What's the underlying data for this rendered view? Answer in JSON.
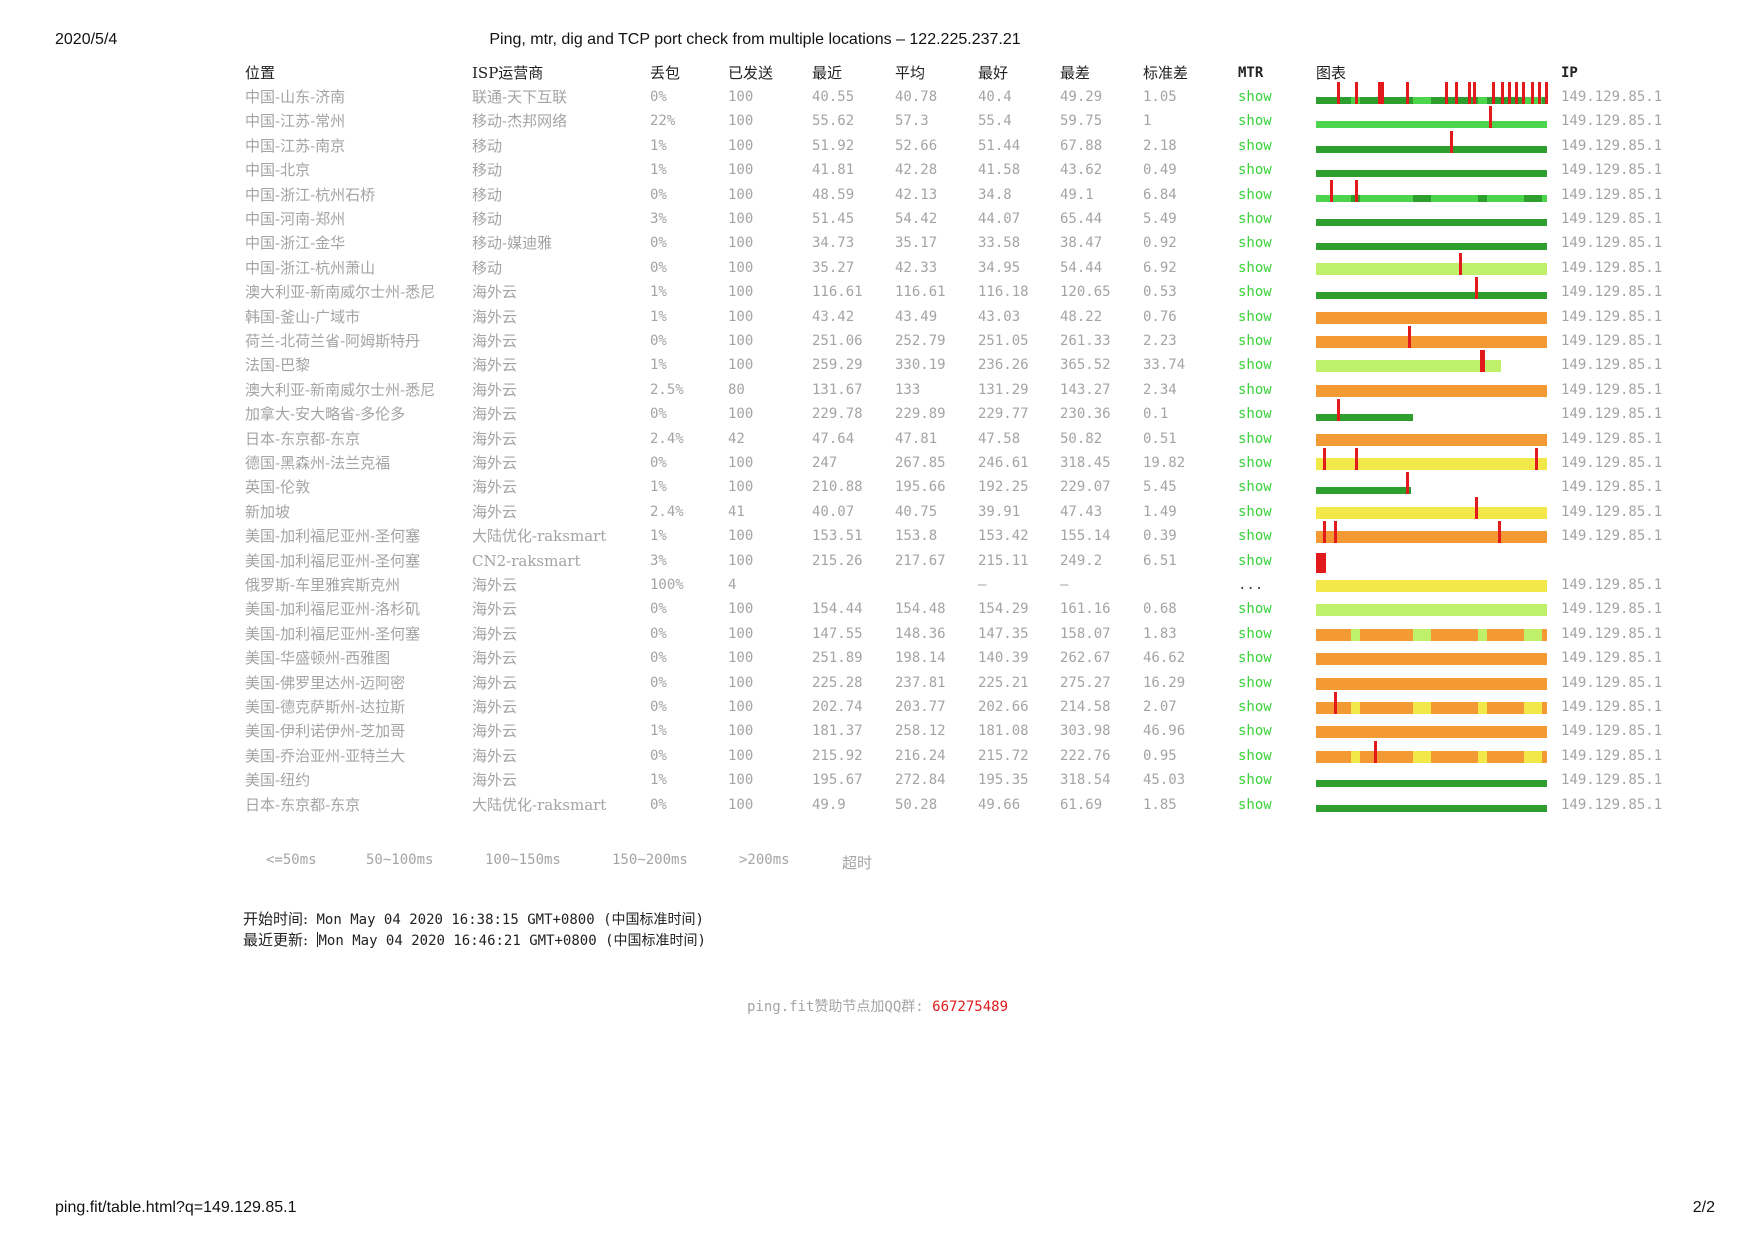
{
  "print": {
    "date": "2020/5/4",
    "title": "Ping, mtr, dig and TCP port check from multiple locations – 122.225.237.21",
    "url": "ping.fit/table.html?q=149.129.85.1",
    "page": "2/2"
  },
  "colors": {
    "le50": "#2e9e2e",
    "r50_100": "#4cd44c",
    "r100_150": "#bff06a",
    "r150_200": "#f3e84a",
    "gt200": "#f39a34",
    "timeout": "#e31a1c",
    "mtr_link": "#3ad23a"
  },
  "headers": {
    "location": "位置",
    "isp": "ISP运营商",
    "loss": "丢包",
    "sent": "已发送",
    "last": "最近",
    "avg": "平均",
    "best": "最好",
    "worst": "最差",
    "stdev": "标准差",
    "mtr": "MTR",
    "chart": "图表",
    "ip": "IP"
  },
  "rows": [
    {
      "location": "中国-山东-济南",
      "isp": "联通-天下互联",
      "loss": "0%",
      "sent": "100",
      "last": "40.55",
      "avg": "40.78",
      "best": "40.4",
      "worst": "49.29",
      "stdev": "1.05",
      "mtr": "show",
      "ip": "149.129.85.1",
      "chart": {
        "color": "le50",
        "fill": 1.0,
        "spikes": [
          0.09,
          0.17,
          0.27,
          0.28,
          0.39,
          0.56,
          0.6,
          0.66,
          0.68,
          0.76,
          0.8,
          0.83,
          0.86,
          0.89,
          0.93,
          0.96,
          0.99
        ],
        "alt": "r50_100"
      }
    },
    {
      "location": "中国-江苏-常州",
      "isp": "移动-杰邦网络",
      "loss": "22%",
      "sent": "100",
      "last": "55.62",
      "avg": "57.3",
      "best": "55.4",
      "worst": "59.75",
      "stdev": "1",
      "mtr": "show",
      "ip": "149.129.85.1",
      "chart": {
        "color": "r50_100",
        "fill": 1.0,
        "spikes": [
          0.75
        ]
      }
    },
    {
      "location": "中国-江苏-南京",
      "isp": "移动",
      "loss": "1%",
      "sent": "100",
      "last": "51.92",
      "avg": "52.66",
      "best": "51.44",
      "worst": "67.88",
      "stdev": "2.18",
      "mtr": "show",
      "ip": "149.129.85.1",
      "chart": {
        "color": "le50",
        "fill": 1.0,
        "spikes": [
          0.58
        ]
      }
    },
    {
      "location": "中国-北京",
      "isp": "移动",
      "loss": "1%",
      "sent": "100",
      "last": "41.81",
      "avg": "42.28",
      "best": "41.58",
      "worst": "43.62",
      "stdev": "0.49",
      "mtr": "show",
      "ip": "149.129.85.1",
      "chart": {
        "color": "le50",
        "fill": 1.0,
        "spikes": []
      }
    },
    {
      "location": "中国-浙江-杭州石桥",
      "isp": "移动",
      "loss": "0%",
      "sent": "100",
      "last": "48.59",
      "avg": "42.13",
      "best": "34.8",
      "worst": "49.1",
      "stdev": "6.84",
      "mtr": "show",
      "ip": "149.129.85.1",
      "chart": {
        "color": "r50_100",
        "fill": 1.0,
        "spikes": [
          0.06,
          0.17
        ],
        "alt": "le50"
      }
    },
    {
      "location": "中国-河南-郑州",
      "isp": "移动",
      "loss": "3%",
      "sent": "100",
      "last": "51.45",
      "avg": "54.42",
      "best": "44.07",
      "worst": "65.44",
      "stdev": "5.49",
      "mtr": "show",
      "ip": "149.129.85.1",
      "chart": {
        "color": "le50",
        "fill": 1.0,
        "spikes": []
      }
    },
    {
      "location": "中国-浙江-金华",
      "isp": "移动-媒迪雅",
      "loss": "0%",
      "sent": "100",
      "last": "34.73",
      "avg": "35.17",
      "best": "33.58",
      "worst": "38.47",
      "stdev": "0.92",
      "mtr": "show",
      "ip": "149.129.85.1",
      "chart": {
        "color": "le50",
        "fill": 1.0,
        "spikes": []
      }
    },
    {
      "location": "中国-浙江-杭州萧山",
      "isp": "移动",
      "loss": "0%",
      "sent": "100",
      "last": "35.27",
      "avg": "42.33",
      "best": "34.95",
      "worst": "54.44",
      "stdev": "6.92",
      "mtr": "show",
      "ip": "149.129.85.1",
      "chart": {
        "color": "r100_150",
        "fill": 1.0,
        "spikes": [
          0.62
        ]
      }
    },
    {
      "location": "澳大利亚-新南威尔士州-悉尼",
      "isp": "海外云",
      "loss": "1%",
      "sent": "100",
      "last": "116.61",
      "avg": "116.61",
      "best": "116.18",
      "worst": "120.65",
      "stdev": "0.53",
      "mtr": "show",
      "ip": "149.129.85.1",
      "chart": {
        "color": "le50",
        "fill": 1.0,
        "spikes": [
          0.69
        ]
      }
    },
    {
      "location": "韩国-釜山-广域市",
      "isp": "海外云",
      "loss": "1%",
      "sent": "100",
      "last": "43.42",
      "avg": "43.49",
      "best": "43.03",
      "worst": "48.22",
      "stdev": "0.76",
      "mtr": "show",
      "ip": "149.129.85.1",
      "chart": {
        "color": "gt200",
        "fill": 1.0,
        "spikes": []
      }
    },
    {
      "location": "荷兰-北荷兰省-阿姆斯特丹",
      "isp": "海外云",
      "loss": "0%",
      "sent": "100",
      "last": "251.06",
      "avg": "252.79",
      "best": "251.05",
      "worst": "261.33",
      "stdev": "2.23",
      "mtr": "show",
      "ip": "149.129.85.1",
      "chart": {
        "color": "gt200",
        "fill": 1.0,
        "spikes": [
          0.4
        ]
      }
    },
    {
      "location": "法国-巴黎",
      "isp": "海外云",
      "loss": "1%",
      "sent": "100",
      "last": "259.29",
      "avg": "330.19",
      "best": "236.26",
      "worst": "365.52",
      "stdev": "33.74",
      "mtr": "show",
      "ip": "149.129.85.1",
      "chart": {
        "color": "r100_150",
        "fill": 0.8,
        "spikes": [
          0.71,
          0.72
        ]
      }
    },
    {
      "location": "澳大利亚-新南威尔士州-悉尼",
      "isp": "海外云",
      "loss": "2.5%",
      "sent": "80",
      "last": "131.67",
      "avg": "133",
      "best": "131.29",
      "worst": "143.27",
      "stdev": "2.34",
      "mtr": "show",
      "ip": "149.129.85.1",
      "chart": {
        "color": "gt200",
        "fill": 1.0,
        "spikes": []
      }
    },
    {
      "location": "加拿大-安大略省-多伦多",
      "isp": "海外云",
      "loss": "0%",
      "sent": "100",
      "last": "229.78",
      "avg": "229.89",
      "best": "229.77",
      "worst": "230.36",
      "stdev": "0.1",
      "mtr": "show",
      "ip": "149.129.85.1",
      "chart": {
        "color": "le50",
        "fill": 0.42,
        "spikes": [
          0.09
        ]
      }
    },
    {
      "location": "日本-东京都-东京",
      "isp": "海外云",
      "loss": "2.4%",
      "sent": "42",
      "last": "47.64",
      "avg": "47.81",
      "best": "47.58",
      "worst": "50.82",
      "stdev": "0.51",
      "mtr": "show",
      "ip": "149.129.85.1",
      "chart": {
        "color": "gt200",
        "fill": 1.0,
        "spikes": []
      }
    },
    {
      "location": "德国-黑森州-法兰克福",
      "isp": "海外云",
      "loss": "0%",
      "sent": "100",
      "last": "247",
      "avg": "267.85",
      "best": "246.61",
      "worst": "318.45",
      "stdev": "19.82",
      "mtr": "show",
      "ip": "149.129.85.1",
      "chart": {
        "color": "r150_200",
        "fill": 1.0,
        "spikes": [
          0.03,
          0.17,
          0.95
        ]
      }
    },
    {
      "location": "英国-伦敦",
      "isp": "海外云",
      "loss": "1%",
      "sent": "100",
      "last": "210.88",
      "avg": "195.66",
      "best": "192.25",
      "worst": "229.07",
      "stdev": "5.45",
      "mtr": "show",
      "ip": "149.129.85.1",
      "chart": {
        "color": "le50",
        "fill": 0.41,
        "spikes": [
          0.39
        ]
      }
    },
    {
      "location": "新加坡",
      "isp": "海外云",
      "loss": "2.4%",
      "sent": "41",
      "last": "40.07",
      "avg": "40.75",
      "best": "39.91",
      "worst": "47.43",
      "stdev": "1.49",
      "mtr": "show",
      "ip": "149.129.85.1",
      "chart": {
        "color": "r150_200",
        "fill": 1.0,
        "spikes": [
          0.69
        ]
      }
    },
    {
      "location": "美国-加利福尼亚州-圣何塞",
      "isp": "大陆优化-raksmart",
      "loss": "1%",
      "sent": "100",
      "last": "153.51",
      "avg": "153.8",
      "best": "153.42",
      "worst": "155.14",
      "stdev": "0.39",
      "mtr": "show",
      "ip": "149.129.85.1",
      "chart": {
        "color": "gt200",
        "fill": 1.0,
        "spikes": [
          0.03,
          0.08,
          0.79
        ]
      }
    },
    {
      "location": "美国-加利福尼亚州-圣何塞",
      "isp": "CN2-raksmart",
      "loss": "3%",
      "sent": "100",
      "last": "215.26",
      "avg": "217.67",
      "best": "215.11",
      "worst": "249.2",
      "stdev": "6.51",
      "mtr": "show",
      "ip": "",
      "chart": {
        "color": "timeout",
        "fill": 0.045,
        "spikes": []
      }
    },
    {
      "location": "俄罗斯-车里雅宾斯克州",
      "isp": "海外云",
      "loss": "100%",
      "sent": "4",
      "last": "",
      "avg": "",
      "best": "–",
      "worst": "–",
      "stdev": "",
      "mtr": "...",
      "ip": "149.129.85.1",
      "chart": {
        "color": "r150_200",
        "fill": 1.0,
        "spikes": []
      }
    },
    {
      "location": "美国-加利福尼亚州-洛杉矶",
      "isp": "海外云",
      "loss": "0%",
      "sent": "100",
      "last": "154.44",
      "avg": "154.48",
      "best": "154.29",
      "worst": "161.16",
      "stdev": "0.68",
      "mtr": "show",
      "ip": "149.129.85.1",
      "chart": {
        "color": "r100_150",
        "fill": 1.0,
        "spikes": []
      }
    },
    {
      "location": "美国-加利福尼亚州-圣何塞",
      "isp": "海外云",
      "loss": "0%",
      "sent": "100",
      "last": "147.55",
      "avg": "148.36",
      "best": "147.35",
      "worst": "158.07",
      "stdev": "1.83",
      "mtr": "show",
      "ip": "149.129.85.1",
      "chart": {
        "color": "gt200",
        "fill": 1.0,
        "spikes": [],
        "alt": "r100_150"
      }
    },
    {
      "location": "美国-华盛顿州-西雅图",
      "isp": "海外云",
      "loss": "0%",
      "sent": "100",
      "last": "251.89",
      "avg": "198.14",
      "best": "140.39",
      "worst": "262.67",
      "stdev": "46.62",
      "mtr": "show",
      "ip": "149.129.85.1",
      "chart": {
        "color": "gt200",
        "fill": 1.0,
        "spikes": []
      }
    },
    {
      "location": "美国-佛罗里达州-迈阿密",
      "isp": "海外云",
      "loss": "0%",
      "sent": "100",
      "last": "225.28",
      "avg": "237.81",
      "best": "225.21",
      "worst": "275.27",
      "stdev": "16.29",
      "mtr": "show",
      "ip": "149.129.85.1",
      "chart": {
        "color": "gt200",
        "fill": 1.0,
        "spikes": []
      }
    },
    {
      "location": "美国-德克萨斯州-达拉斯",
      "isp": "海外云",
      "loss": "0%",
      "sent": "100",
      "last": "202.74",
      "avg": "203.77",
      "best": "202.66",
      "worst": "214.58",
      "stdev": "2.07",
      "mtr": "show",
      "ip": "149.129.85.1",
      "chart": {
        "color": "gt200",
        "fill": 1.0,
        "spikes": [
          0.08
        ],
        "alt": "r150_200"
      }
    },
    {
      "location": "美国-伊利诺伊州-芝加哥",
      "isp": "海外云",
      "loss": "1%",
      "sent": "100",
      "last": "181.37",
      "avg": "258.12",
      "best": "181.08",
      "worst": "303.98",
      "stdev": "46.96",
      "mtr": "show",
      "ip": "149.129.85.1",
      "chart": {
        "color": "gt200",
        "fill": 1.0,
        "spikes": []
      }
    },
    {
      "location": "美国-乔治亚州-亚特兰大",
      "isp": "海外云",
      "loss": "0%",
      "sent": "100",
      "last": "215.92",
      "avg": "216.24",
      "best": "215.72",
      "worst": "222.76",
      "stdev": "0.95",
      "mtr": "show",
      "ip": "149.129.85.1",
      "chart": {
        "color": "gt200",
        "fill": 1.0,
        "spikes": [
          0.25
        ],
        "alt": "r150_200"
      }
    },
    {
      "location": "美国-纽约",
      "isp": "海外云",
      "loss": "1%",
      "sent": "100",
      "last": "195.67",
      "avg": "272.84",
      "best": "195.35",
      "worst": "318.54",
      "stdev": "45.03",
      "mtr": "show",
      "ip": "149.129.85.1",
      "chart": {
        "color": "le50",
        "fill": 1.0,
        "spikes": []
      }
    },
    {
      "location": "日本-东京都-东京",
      "isp": "大陆优化-raksmart",
      "loss": "0%",
      "sent": "100",
      "last": "49.9",
      "avg": "50.28",
      "best": "49.66",
      "worst": "61.69",
      "stdev": "1.85",
      "mtr": "show",
      "ip": "149.129.85.1",
      "chart": {
        "color": "le50",
        "fill": 1.0,
        "spikes": []
      }
    }
  ],
  "legend": [
    "<=50ms",
    "50~100ms",
    "100~150ms",
    "150~200ms",
    ">200ms",
    "超时"
  ],
  "times": {
    "start_label": "开始时间:",
    "start_value": "Mon May 04 2020 16:38:15 GMT+0800 (中国标准时间)",
    "update_label": "最近更新:",
    "update_value": "Mon May 04 2020 16:46:21 GMT+0800 (中国标准时间)"
  },
  "sponsor": {
    "text": "ping.fit赞助节点加QQ群:",
    "qq": "667275489"
  }
}
